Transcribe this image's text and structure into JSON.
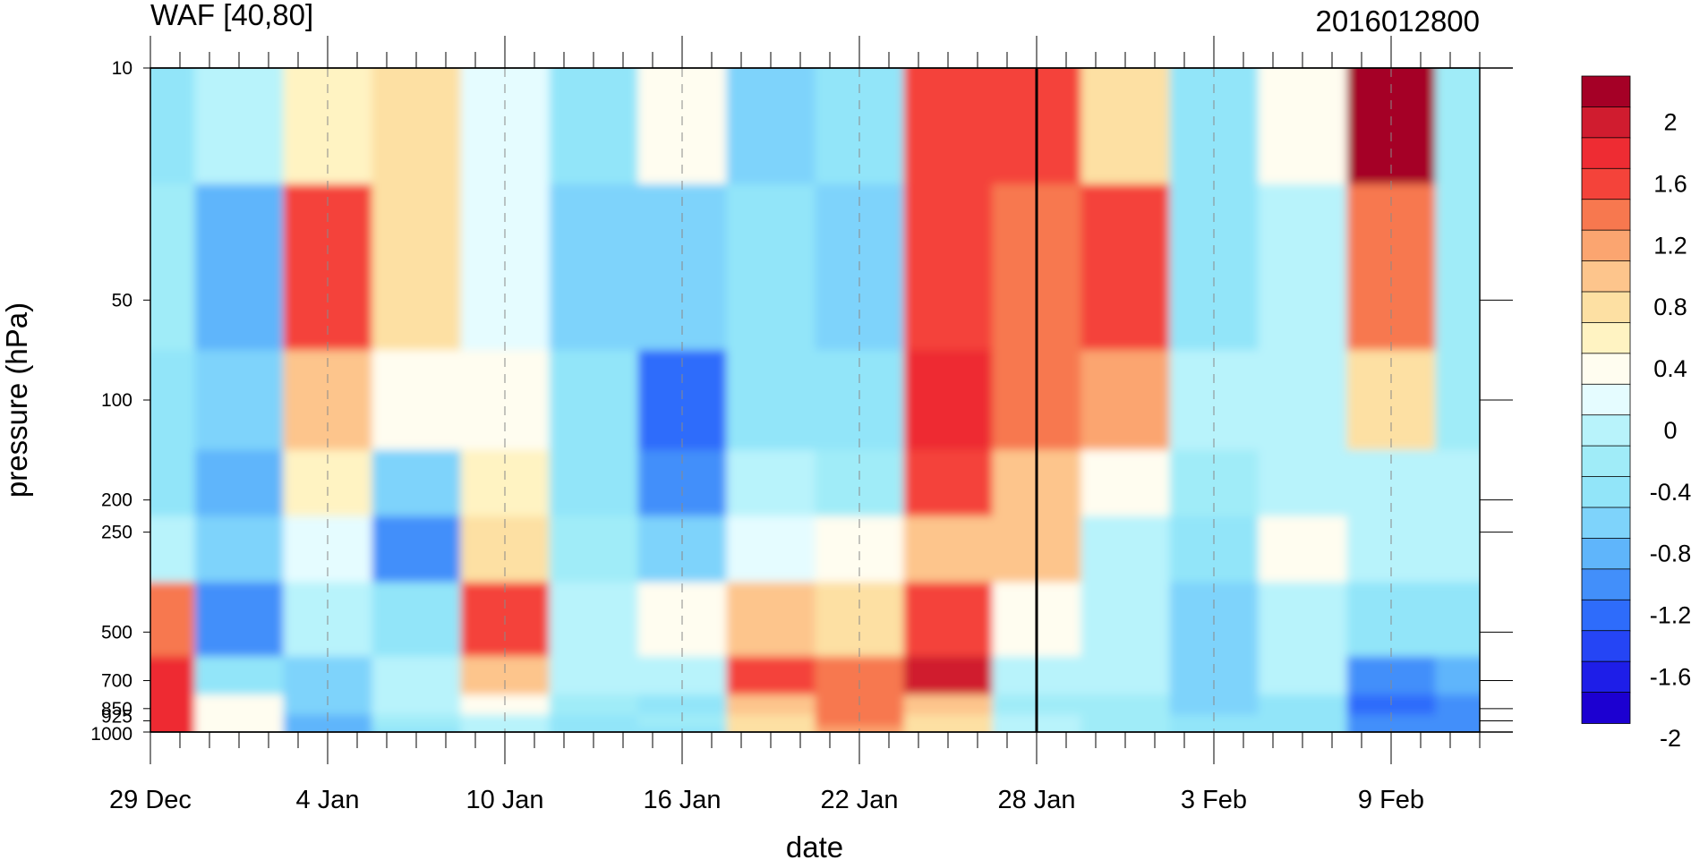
{
  "chart_data": {
    "type": "heatmap",
    "title": "WAF [40,80]",
    "subtitle": "2016012800",
    "xlabel": "date",
    "ylabel": "pressure (hPa)",
    "x_ticks": [
      "29 Dec",
      "4 Jan",
      "10 Jan",
      "16 Jan",
      "22 Jan",
      "28 Jan",
      "3 Feb",
      "9 Feb"
    ],
    "x_tick_days": [
      0,
      6,
      12,
      18,
      24,
      30,
      36,
      42
    ],
    "xlim": [
      0,
      45
    ],
    "y_ticks": [
      10,
      50,
      100,
      200,
      250,
      500,
      700,
      850,
      925,
      1000
    ],
    "y_scale": "log",
    "ylim": [
      1000,
      10
    ],
    "marker_line_day": 30,
    "colorbar_labels": [
      "2",
      "1.6",
      "1.2",
      "0.8",
      "0.4",
      "0",
      "-0.4",
      "-0.8",
      "-1.2",
      "-1.6",
      "-2"
    ],
    "colorbar_colors": [
      "#a50026",
      "#d01c2f",
      "#ee2c33",
      "#f4433a",
      "#f7784f",
      "#fba570",
      "#fdc58c",
      "#fde0a3",
      "#fff3c2",
      "#fffdf0",
      "#e5fcff",
      "#b8f3fb",
      "#a0ecf8",
      "#92e5f9",
      "#7ed3fb",
      "#5fb5fb",
      "#428ffa",
      "#2e6cfb",
      "#2545f5",
      "#1e1ee8",
      "#1c00d1"
    ],
    "levels_pressure": [
      10,
      50,
      100,
      200,
      250,
      500,
      700,
      850,
      925,
      1000
    ],
    "values_days": [
      0,
      3,
      6,
      9,
      12,
      15,
      18,
      21,
      24,
      27,
      30,
      33,
      36,
      39,
      42,
      45
    ],
    "values": [
      [
        -0.5,
        -0.3,
        0.5,
        0.6,
        0.0,
        -0.5,
        0.2,
        -0.7,
        -0.5,
        1.4,
        1.3,
        0.7,
        -0.6,
        0.2,
        2.1,
        -0.4
      ],
      [
        -0.4,
        -1.0,
        1.3,
        0.7,
        0.0,
        -0.7,
        -0.9,
        -0.6,
        -0.8,
        1.5,
        1.2,
        1.4,
        -0.6,
        -0.3,
        1.2,
        -0.4
      ],
      [
        -0.5,
        -0.8,
        0.9,
        0.2,
        0.1,
        -0.6,
        -1.4,
        -0.5,
        -0.5,
        1.6,
        1.2,
        1.0,
        -0.3,
        -0.2,
        0.6,
        -0.4
      ],
      [
        -0.5,
        -1.0,
        0.4,
        -0.7,
        0.4,
        -0.6,
        -1.3,
        -0.3,
        -0.4,
        1.3,
        0.9,
        0.2,
        -0.4,
        -0.3,
        -0.3,
        -0.3
      ],
      [
        -0.3,
        -0.9,
        0.0,
        -1.1,
        0.6,
        -0.4,
        -0.7,
        0.0,
        0.2,
        0.9,
        0.9,
        -0.1,
        -0.5,
        0.2,
        -0.2,
        -0.3
      ],
      [
        1.2,
        -1.3,
        -0.1,
        -0.5,
        1.4,
        -0.3,
        0.1,
        0.8,
        0.7,
        1.5,
        0.3,
        -0.1,
        -0.9,
        -0.1,
        -0.6,
        -0.6
      ],
      [
        1.6,
        -0.5,
        -0.7,
        -0.3,
        0.8,
        -0.3,
        -0.2,
        1.3,
        1.1,
        1.8,
        -0.2,
        -0.3,
        -0.9,
        -0.3,
        -1.2,
        -1.0
      ],
      [
        1.7,
        0.1,
        -0.9,
        -0.2,
        0.3,
        -0.4,
        -0.5,
        0.9,
        1.1,
        0.9,
        -0.4,
        -0.4,
        -0.8,
        -0.5,
        -1.4,
        -1.3
      ],
      [
        1.7,
        0.1,
        -1.0,
        -0.4,
        -0.1,
        -0.6,
        -0.4,
        0.7,
        1.1,
        0.7,
        -0.3,
        -0.4,
        -0.6,
        -0.5,
        -1.3,
        -1.3
      ],
      [
        1.6,
        0.1,
        -1.0,
        -0.5,
        -0.3,
        -0.6,
        -0.5,
        0.6,
        1.0,
        0.6,
        -0.3,
        -0.4,
        -0.6,
        -0.5,
        -1.3,
        -1.3
      ]
    ]
  }
}
